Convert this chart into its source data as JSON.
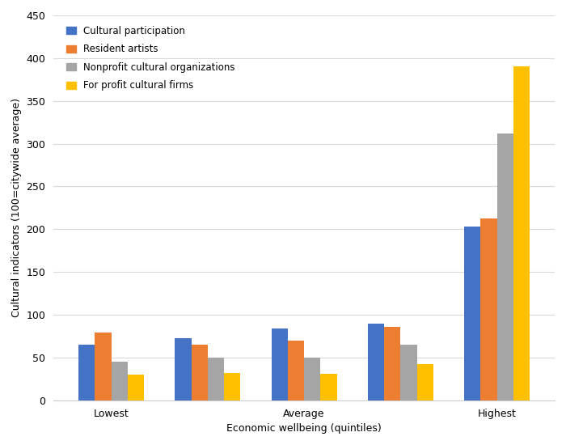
{
  "categories": [
    "Lowest",
    "",
    "Average",
    "",
    "Highest"
  ],
  "series": [
    {
      "name": "Cultural participation",
      "color": "#4472C4",
      "values": [
        65,
        73,
        84,
        90,
        203
      ]
    },
    {
      "name": "Resident artists",
      "color": "#ED7D31",
      "values": [
        79,
        65,
        70,
        86,
        213
      ]
    },
    {
      "name": "Nonprofit cultural organizations",
      "color": "#A5A5A5",
      "values": [
        45,
        50,
        50,
        65,
        312
      ]
    },
    {
      "name": "For profit cultural firms",
      "color": "#FFC000",
      "values": [
        30,
        32,
        31,
        42,
        390
      ]
    }
  ],
  "xlabel": "Economic wellbeing (quintiles)",
  "ylabel": "Cultural indicators (100=citywide average)",
  "ylim": [
    0,
    450
  ],
  "yticks": [
    0,
    50,
    100,
    150,
    200,
    250,
    300,
    350,
    400,
    450
  ],
  "background_color": "#ffffff",
  "grid_color": "#d9d9d9",
  "bar_width": 0.17,
  "legend_fontsize": 8.5,
  "axis_fontsize": 9,
  "tick_label_fontsize": 9
}
